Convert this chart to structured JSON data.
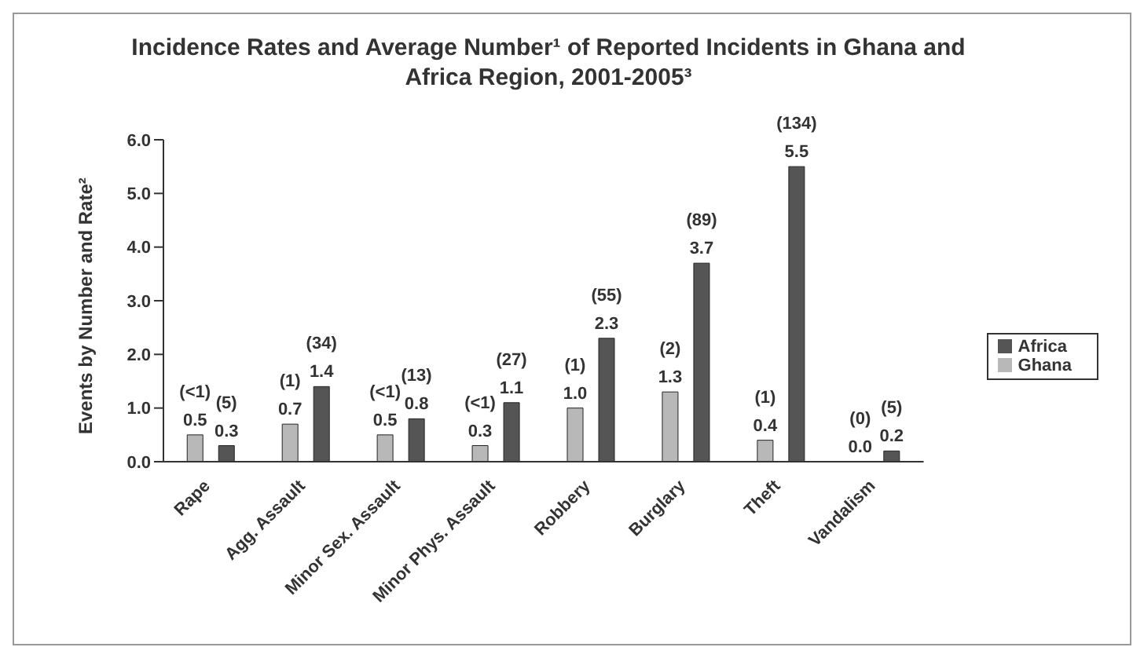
{
  "chart_data": {
    "type": "bar",
    "title": "Incidence Rates and Average Number¹ of Reported Incidents in Ghana and Africa Region, 2001-2005³",
    "ylabel": "Events by Number and Rate²",
    "categories": [
      "Rape",
      "Agg. Assault",
      "Minor Sex. Assault",
      "Minor Phys. Assault",
      "Robbery",
      "Burglary",
      "Theft",
      "Vandalism"
    ],
    "series": [
      {
        "name": "Ghana",
        "color": "#b8b8b8",
        "values": [
          0.5,
          0.7,
          0.5,
          0.3,
          1.0,
          1.3,
          0.4,
          0.0
        ],
        "value_labels": [
          "(<1) 0.5",
          "(1) 0.7",
          "(<1) 0.5",
          "(<1) 0.3",
          "(1) 1.0",
          "(2) 1.3",
          "(1) 0.4",
          "(0) 0.0"
        ]
      },
      {
        "name": "Africa",
        "color": "#555555",
        "values": [
          0.3,
          1.4,
          0.8,
          1.1,
          2.3,
          3.7,
          5.5,
          0.2
        ],
        "value_labels": [
          "(5) 0.3",
          "(34) 1.4",
          "(13) 0.8",
          "(27) 1.1",
          "(55) 2.3",
          "(89) 3.7",
          "(134) 5.5",
          "(5) 0.2"
        ]
      }
    ],
    "ylim": [
      0,
      6
    ],
    "yticks": [
      {
        "value": 0,
        "label": "0.0"
      },
      {
        "value": 1,
        "label": "1.0"
      },
      {
        "value": 2,
        "label": "2.0"
      },
      {
        "value": 3,
        "label": "3.0"
      },
      {
        "value": 4,
        "label": "4.0"
      },
      {
        "value": 5,
        "label": "5.0"
      },
      {
        "value": 6,
        "label": "6.0"
      }
    ],
    "grid": false,
    "legend": "right"
  }
}
